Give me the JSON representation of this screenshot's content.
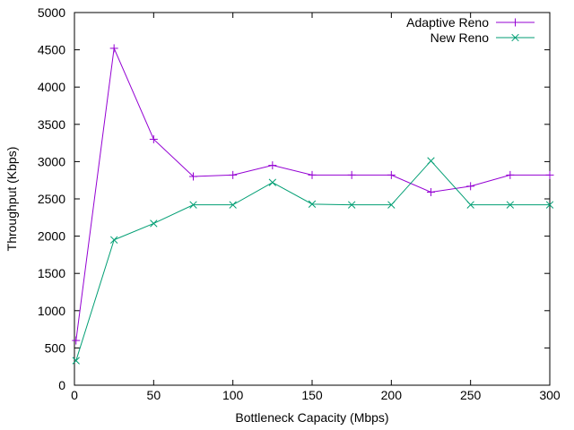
{
  "chart_data": {
    "type": "line",
    "title": "",
    "xlabel": "Bottleneck Capacity (Mbps)",
    "ylabel": "Throughput (Kbps)",
    "xlim": [
      0,
      300
    ],
    "ylim": [
      0,
      5000
    ],
    "xticks": [
      0,
      50,
      100,
      150,
      200,
      250,
      300
    ],
    "yticks": [
      0,
      500,
      1000,
      1500,
      2000,
      2500,
      3000,
      3500,
      4000,
      4500,
      5000
    ],
    "grid": false,
    "legend_position": "top-right",
    "series": [
      {
        "name": "Adaptive Reno",
        "color": "#9400d3",
        "marker": "plus",
        "x": [
          1,
          25,
          50,
          75,
          100,
          125,
          150,
          175,
          200,
          225,
          250,
          275,
          300
        ],
        "y": [
          600,
          4520,
          3300,
          2800,
          2820,
          2950,
          2820,
          2820,
          2820,
          2590,
          2670,
          2820,
          2820
        ]
      },
      {
        "name": "New Reno",
        "color": "#009e73",
        "marker": "cross",
        "x": [
          1,
          25,
          50,
          75,
          100,
          125,
          150,
          175,
          200,
          225,
          250,
          275,
          300
        ],
        "y": [
          330,
          1950,
          2170,
          2420,
          2420,
          2720,
          2430,
          2420,
          2420,
          3010,
          2420,
          2420,
          2420
        ]
      }
    ]
  }
}
